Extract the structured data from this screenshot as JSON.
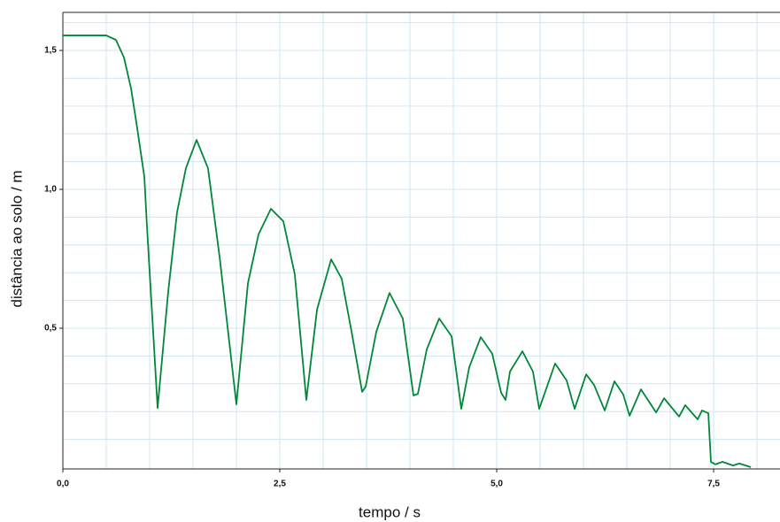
{
  "chart_data": {
    "type": "line",
    "x_label": "tempo / s",
    "y_label": "distância ao solo / m",
    "color": "#00873a",
    "xlim": [
      0,
      8.265
    ],
    "ylim": [
      0,
      1.637
    ],
    "xticks": [
      {
        "value": 0,
        "label": "0,0"
      },
      {
        "value": 2.5,
        "label": "2,5"
      },
      {
        "value": 5,
        "label": "5,0"
      },
      {
        "value": 7.5,
        "label": "7,5"
      }
    ],
    "yticks": [
      {
        "value": 0.5,
        "label": "0,5"
      },
      {
        "value": 1,
        "label": "1,0"
      },
      {
        "value": 1.5,
        "label": "1,5"
      }
    ],
    "x_grid": [
      0.5,
      1,
      1.5,
      2,
      2.5,
      3,
      3.5,
      4,
      4.5,
      5,
      5.5,
      6,
      6.5,
      7,
      7.5,
      8
    ],
    "y_grid": [
      0.1,
      0.2,
      0.3,
      0.4,
      0.5,
      0.6,
      0.7,
      0.8,
      0.9,
      1,
      1.1,
      1.2,
      1.3,
      1.4,
      1.5,
      1.6
    ],
    "x": [
      0,
      0.5,
      0.612,
      0.704,
      0.786,
      0.857,
      0.939,
      0.969,
      1.092,
      1.214,
      1.316,
      1.418,
      1.541,
      1.673,
      1.806,
      2.0,
      2.133,
      2.255,
      2.398,
      2.541,
      2.673,
      2.806,
      2.929,
      3.092,
      3.214,
      3.337,
      3.449,
      3.49,
      3.612,
      3.765,
      3.918,
      4.041,
      4.092,
      4.194,
      4.337,
      4.48,
      4.592,
      4.684,
      4.816,
      4.949,
      5.051,
      5.102,
      5.153,
      5.296,
      5.418,
      5.49,
      5.673,
      5.806,
      5.898,
      6.031,
      6.122,
      6.245,
      6.357,
      6.459,
      6.531,
      6.663,
      6.837,
      6.929,
      7.102,
      7.173,
      7.316,
      7.367,
      7.439,
      7.469,
      7.52,
      7.602,
      7.724,
      7.796,
      7.929
    ],
    "values": [
      1.554,
      1.554,
      1.538,
      1.475,
      1.363,
      1.22,
      1.045,
      0.869,
      0.213,
      0.631,
      0.917,
      1.076,
      1.178,
      1.076,
      0.758,
      0.226,
      0.662,
      0.838,
      0.93,
      0.885,
      0.694,
      0.242,
      0.567,
      0.748,
      0.678,
      0.471,
      0.271,
      0.29,
      0.487,
      0.627,
      0.535,
      0.258,
      0.264,
      0.424,
      0.535,
      0.471,
      0.21,
      0.36,
      0.468,
      0.408,
      0.268,
      0.242,
      0.344,
      0.417,
      0.344,
      0.21,
      0.373,
      0.312,
      0.21,
      0.334,
      0.296,
      0.204,
      0.309,
      0.261,
      0.185,
      0.28,
      0.197,
      0.248,
      0.182,
      0.223,
      0.172,
      0.204,
      0.194,
      0.019,
      0.01,
      0.019,
      0.006,
      0.013,
      0
    ]
  }
}
